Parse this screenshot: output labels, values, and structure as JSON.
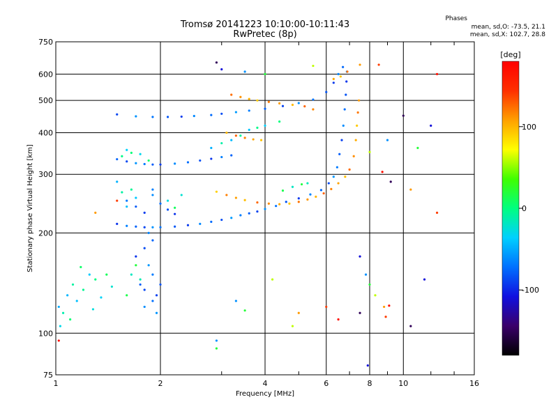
{
  "header": {
    "title": "Tromsø 20141223 10:10:00-10:11:43",
    "subtitle": "RwPretec (8p)",
    "stats_title": "Phases",
    "stats_o": "mean, sd,O: -73.5, 21.1",
    "stats_x": "mean, sd,X: 102.7, 28.8"
  },
  "chart_data": {
    "type": "scatter",
    "xlabel": "Frequency [MHz]",
    "ylabel": "Stationary phase Virtual Height [km]",
    "x_scale": "log",
    "y_scale": "log",
    "xlim": [
      1,
      16
    ],
    "ylim": [
      75,
      750
    ],
    "x_ticks": [
      1,
      2,
      4,
      6,
      8,
      10,
      16
    ],
    "x_minor_ticks": [
      3,
      5,
      7,
      9,
      12,
      14
    ],
    "y_ticks": [
      75,
      100,
      200,
      300,
      400,
      500,
      600,
      750
    ],
    "grid": true,
    "colorbar": {
      "label": "[deg]",
      "range": [
        -180,
        180
      ],
      "ticks": [
        100,
        0,
        -100
      ],
      "colormap": [
        "#000000",
        "#3a006a",
        "#1010e0",
        "#0070ff",
        "#00d0ff",
        "#00ff80",
        "#40ff00",
        "#ffff00",
        "#ffa000",
        "#ff3000",
        "#ff0000"
      ]
    },
    "series": [
      {
        "mode": "O",
        "color_value": -75,
        "points": [
          [
            1.5,
            213
          ],
          [
            1.6,
            210
          ],
          [
            1.7,
            209
          ],
          [
            1.8,
            208
          ],
          [
            1.9,
            208
          ],
          [
            2.0,
            208
          ],
          [
            2.2,
            209
          ],
          [
            2.4,
            211
          ],
          [
            2.6,
            213
          ],
          [
            2.8,
            216
          ],
          [
            3.0,
            219
          ],
          [
            3.2,
            222
          ],
          [
            3.4,
            226
          ],
          [
            3.6,
            229
          ],
          [
            3.8,
            232
          ],
          [
            4.0,
            236
          ],
          [
            4.3,
            241
          ],
          [
            4.6,
            248
          ],
          [
            5.0,
            254
          ],
          [
            5.4,
            261
          ],
          [
            5.8,
            269
          ],
          [
            6.1,
            282
          ],
          [
            6.3,
            295
          ],
          [
            6.45,
            315
          ],
          [
            6.55,
            345
          ],
          [
            6.65,
            380
          ],
          [
            6.72,
            420
          ],
          [
            6.78,
            470
          ],
          [
            6.83,
            520
          ],
          [
            6.86,
            570
          ],
          [
            6.88,
            610
          ],
          [
            1.5,
            333
          ],
          [
            1.6,
            328
          ],
          [
            1.7,
            324
          ],
          [
            1.8,
            322
          ],
          [
            1.9,
            321
          ],
          [
            2.0,
            321
          ],
          [
            2.2,
            323
          ],
          [
            2.4,
            326
          ],
          [
            2.6,
            330
          ],
          [
            2.8,
            334
          ],
          [
            3.0,
            338
          ],
          [
            3.2,
            342
          ],
          [
            1.5,
            454
          ],
          [
            1.7,
            448
          ],
          [
            1.9,
            446
          ],
          [
            2.1,
            446
          ],
          [
            2.3,
            447
          ],
          [
            2.5,
            449
          ],
          [
            2.8,
            452
          ],
          [
            3.0,
            456
          ],
          [
            3.3,
            461
          ],
          [
            3.6,
            466
          ],
          [
            4.0,
            472
          ],
          [
            4.5,
            481
          ],
          [
            5.0,
            491
          ],
          [
            5.5,
            503
          ],
          [
            6.0,
            530
          ],
          [
            6.3,
            565
          ],
          [
            6.5,
            600
          ],
          [
            6.7,
            630
          ],
          [
            1.8,
            180
          ],
          [
            1.85,
            160
          ],
          [
            1.9,
            150
          ],
          [
            1.75,
            140
          ],
          [
            1.95,
            130
          ],
          [
            1.8,
            120
          ],
          [
            1.9,
            125
          ],
          [
            2.0,
            140
          ],
          [
            1.7,
            170
          ],
          [
            1.85,
            200
          ],
          [
            1.9,
            190
          ],
          [
            1.8,
            135
          ],
          [
            1.95,
            115
          ],
          [
            1.6,
            250
          ],
          [
            1.7,
            240
          ],
          [
            1.8,
            230
          ],
          [
            1.9,
            260
          ],
          [
            2.0,
            245
          ],
          [
            2.1,
            235
          ],
          [
            2.2,
            228
          ],
          [
            1.9,
            270
          ]
        ]
      },
      {
        "mode": "X",
        "color_value": 110,
        "points": [
          [
            2.9,
            266
          ],
          [
            3.1,
            260
          ],
          [
            3.3,
            255
          ],
          [
            3.5,
            251
          ],
          [
            3.8,
            247
          ],
          [
            4.1,
            245
          ],
          [
            4.4,
            244
          ],
          [
            4.7,
            245
          ],
          [
            5.0,
            248
          ],
          [
            5.3,
            252
          ],
          [
            5.6,
            257
          ],
          [
            5.9,
            263
          ],
          [
            6.2,
            271
          ],
          [
            6.5,
            282
          ],
          [
            6.8,
            295
          ],
          [
            7.0,
            310
          ],
          [
            7.2,
            340
          ],
          [
            7.3,
            380
          ],
          [
            7.35,
            420
          ],
          [
            7.4,
            460
          ],
          [
            7.45,
            500
          ],
          [
            3.1,
            400
          ],
          [
            3.3,
            392
          ],
          [
            3.5,
            386
          ],
          [
            3.7,
            382
          ],
          [
            3.9,
            380
          ],
          [
            3.2,
            520
          ],
          [
            3.4,
            512
          ],
          [
            3.6,
            505
          ],
          [
            3.8,
            500
          ],
          [
            4.1,
            495
          ],
          [
            4.4,
            490
          ],
          [
            4.8,
            485
          ],
          [
            5.2,
            480
          ],
          [
            5.5,
            470
          ],
          [
            6.3,
            580
          ],
          [
            6.6,
            590
          ],
          [
            6.9,
            610
          ]
        ]
      },
      {
        "mode": "spread",
        "color_value": -10,
        "points": [
          [
            1.02,
            120
          ],
          [
            1.05,
            115
          ],
          [
            1.08,
            130
          ],
          [
            1.12,
            140
          ],
          [
            1.15,
            125
          ],
          [
            1.2,
            135
          ],
          [
            1.25,
            150
          ],
          [
            1.3,
            145
          ],
          [
            1.35,
            128
          ],
          [
            1.1,
            110
          ],
          [
            1.03,
            105
          ],
          [
            1.18,
            158
          ],
          [
            1.28,
            118
          ],
          [
            1.4,
            150
          ],
          [
            1.45,
            138
          ],
          [
            1.6,
            130
          ],
          [
            1.65,
            150
          ],
          [
            1.7,
            160
          ],
          [
            1.75,
            145
          ],
          [
            1.5,
            285
          ],
          [
            1.55,
            265
          ],
          [
            1.6,
            240
          ],
          [
            1.65,
            270
          ],
          [
            1.7,
            255
          ],
          [
            1.55,
            340
          ],
          [
            1.6,
            355
          ],
          [
            1.65,
            348
          ],
          [
            1.75,
            345
          ],
          [
            1.85,
            330
          ],
          [
            2.1,
            250
          ],
          [
            2.2,
            238
          ],
          [
            2.3,
            260
          ],
          [
            4.5,
            268
          ],
          [
            4.8,
            275
          ],
          [
            5.1,
            280
          ],
          [
            5.3,
            282
          ],
          [
            2.8,
            360
          ],
          [
            3.0,
            372
          ],
          [
            3.2,
            380
          ],
          [
            3.4,
            392
          ],
          [
            3.6,
            408
          ],
          [
            3.8,
            414
          ],
          [
            4.0,
            420
          ],
          [
            4.4,
            432
          ]
        ]
      },
      {
        "mode": "noise",
        "color_value": 40,
        "points": [
          [
            2.9,
            650
          ],
          [
            3.0,
            620
          ],
          [
            3.5,
            610
          ],
          [
            4.0,
            600
          ],
          [
            5.5,
            635
          ],
          [
            7.5,
            640
          ],
          [
            8.5,
            640
          ],
          [
            12.5,
            600
          ],
          [
            10.0,
            450
          ],
          [
            12.0,
            420
          ],
          [
            9.0,
            380
          ],
          [
            11.0,
            360
          ],
          [
            8.0,
            350
          ],
          [
            10.5,
            270
          ],
          [
            12.5,
            230
          ],
          [
            8.7,
            305
          ],
          [
            9.2,
            285
          ],
          [
            7.5,
            170
          ],
          [
            7.8,
            150
          ],
          [
            8.0,
            140
          ],
          [
            8.3,
            130
          ],
          [
            8.8,
            120
          ],
          [
            8.9,
            112
          ],
          [
            9.1,
            121
          ],
          [
            10.5,
            105
          ],
          [
            11.5,
            145
          ],
          [
            2.9,
            95
          ],
          [
            2.9,
            90
          ],
          [
            4.8,
            105
          ],
          [
            5.0,
            115
          ],
          [
            6.0,
            120
          ],
          [
            6.5,
            110
          ],
          [
            7.5,
            115
          ],
          [
            7.9,
            80
          ],
          [
            3.3,
            125
          ],
          [
            3.5,
            117
          ],
          [
            4.2,
            145
          ],
          [
            1.3,
            230
          ],
          [
            1.5,
            250
          ],
          [
            1.02,
            95
          ]
        ]
      }
    ]
  }
}
